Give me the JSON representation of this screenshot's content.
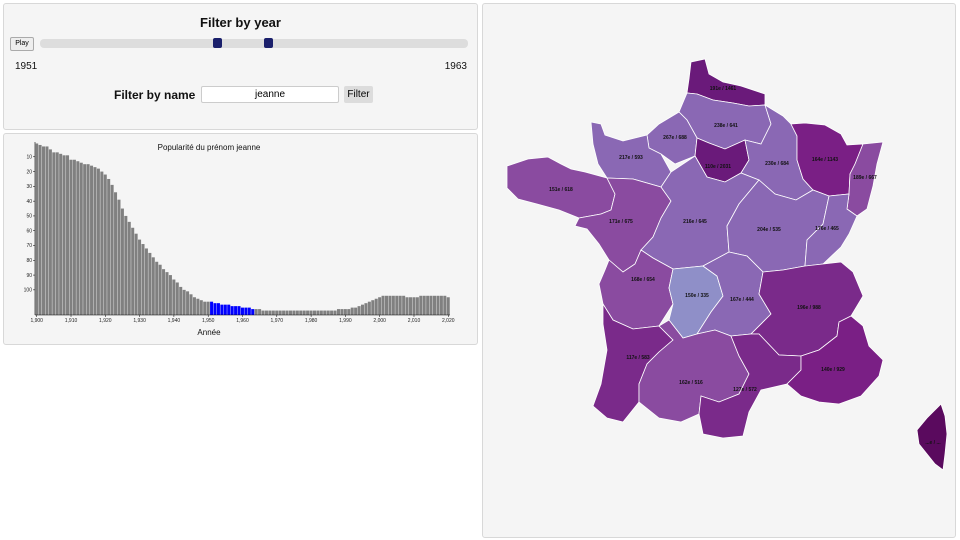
{
  "filter": {
    "title": "Filter by year",
    "play_label": "Play",
    "year_start": "1951",
    "year_end": "1963",
    "name_label": "Filter by name",
    "name_value": "jeanne",
    "filter_label": "Filter"
  },
  "colors": {
    "bar": "#808080",
    "bar_selected": "#0000ff",
    "handle": "#1a1f6b"
  },
  "chart_data": [
    {
      "type": "bar",
      "title": "Popularité du prénom jeanne",
      "xlabel": "Année",
      "ylabel": "",
      "y_reversed": true,
      "ylim": [
        0,
        117
      ],
      "yticks": [
        10,
        20,
        30,
        40,
        50,
        60,
        70,
        80,
        90,
        100
      ],
      "x_tick_labels": [
        "1,900",
        "1,910",
        "1,920",
        "1,930",
        "1,940",
        "1,950",
        "1,960",
        "1,970",
        "1,980",
        "1,990",
        "2,000",
        "2,010",
        "2,020"
      ],
      "selected_range": [
        1951,
        1963
      ],
      "years": [
        1900,
        1901,
        1902,
        1903,
        1904,
        1905,
        1906,
        1907,
        1908,
        1909,
        1910,
        1911,
        1912,
        1913,
        1914,
        1915,
        1916,
        1917,
        1918,
        1919,
        1920,
        1921,
        1922,
        1923,
        1924,
        1925,
        1926,
        1927,
        1928,
        1929,
        1930,
        1931,
        1932,
        1933,
        1934,
        1935,
        1936,
        1937,
        1938,
        1939,
        1940,
        1941,
        1942,
        1943,
        1944,
        1945,
        1946,
        1947,
        1948,
        1949,
        1950,
        1951,
        1952,
        1953,
        1954,
        1955,
        1956,
        1957,
        1958,
        1959,
        1960,
        1961,
        1962,
        1963,
        1964,
        1965,
        1966,
        1967,
        1968,
        1969,
        1970,
        1971,
        1972,
        1973,
        1974,
        1975,
        1976,
        1977,
        1978,
        1979,
        1980,
        1981,
        1982,
        1983,
        1984,
        1985,
        1986,
        1987,
        1988,
        1989,
        1990,
        1991,
        1992,
        1993,
        1994,
        1995,
        1996,
        1997,
        1998,
        1999,
        2000,
        2001,
        2002,
        2003,
        2004,
        2005,
        2006,
        2007,
        2008,
        2009,
        2010,
        2011,
        2012,
        2013,
        2014,
        2015,
        2016,
        2017,
        2018,
        2019,
        2020
      ],
      "values": [
        1,
        2,
        3,
        3,
        5,
        7,
        7,
        8,
        9,
        9,
        12,
        12,
        13,
        14,
        15,
        15,
        16,
        17,
        18,
        20,
        22,
        25,
        29,
        34,
        39,
        45,
        50,
        54,
        58,
        62,
        66,
        69,
        72,
        75,
        78,
        81,
        83,
        86,
        88,
        90,
        93,
        95,
        98,
        100,
        101,
        103,
        105,
        106,
        107,
        108,
        108,
        108,
        109,
        109,
        110,
        110,
        110,
        111,
        111,
        111,
        112,
        112,
        112,
        113,
        113,
        113,
        114,
        114,
        114,
        114,
        114,
        114,
        114,
        114,
        114,
        114,
        114,
        114,
        114,
        114,
        114,
        114,
        114,
        114,
        114,
        114,
        114,
        114,
        113,
        113,
        113,
        113,
        112,
        112,
        111,
        110,
        109,
        108,
        107,
        106,
        105,
        104,
        104,
        104,
        104,
        104,
        104,
        104,
        105,
        105,
        105,
        105,
        104,
        104,
        104,
        104,
        104,
        104,
        104,
        104,
        105
      ]
    },
    {
      "type": "map",
      "title": "",
      "regions": [
        {
          "id": "hauts-de-france",
          "label": "191e / 1461",
          "value": 1461,
          "color": "#6a1a7a"
        },
        {
          "id": "normandie-est",
          "label": "238e / 641",
          "value": 641,
          "color": "#8a68b4"
        },
        {
          "id": "normandie-ouest",
          "label": "267e / 688",
          "value": 688,
          "color": "#8a68b4"
        },
        {
          "id": "manche",
          "label": "217e / 593",
          "value": 593,
          "color": "#8a68b4"
        },
        {
          "id": "ile-de-france",
          "label": "110e / 2031",
          "value": 2031,
          "color": "#6a1a7a"
        },
        {
          "id": "champagne",
          "label": "230e / 684",
          "value": 684,
          "color": "#8a68b4"
        },
        {
          "id": "lorraine",
          "label": "164e / 1143",
          "value": 1143,
          "color": "#7a1f85"
        },
        {
          "id": "alsace",
          "label": "189e / 667",
          "value": 667,
          "color": "#8a4ba0"
        },
        {
          "id": "bretagne",
          "label": "151e / 618",
          "value": 618,
          "color": "#8a4ba0"
        },
        {
          "id": "pays-de-la-loire",
          "label": "171e / 675",
          "value": 675,
          "color": "#8a4ba0"
        },
        {
          "id": "centre",
          "label": "216e / 645",
          "value": 645,
          "color": "#8a68b4"
        },
        {
          "id": "bourgogne",
          "label": "204e / 535",
          "value": 535,
          "color": "#8a68b4"
        },
        {
          "id": "franche-comte",
          "label": "176e / 465",
          "value": 465,
          "color": "#8a68b4"
        },
        {
          "id": "poitou-charentes",
          "label": "168e / 654",
          "value": 654,
          "color": "#8a4ba0"
        },
        {
          "id": "limousin",
          "label": "150e / 335",
          "value": 335,
          "color": "#8f8fc8"
        },
        {
          "id": "auvergne",
          "label": "167e / 444",
          "value": 444,
          "color": "#8a68b4"
        },
        {
          "id": "rhone-alpes",
          "label": "196e / 988",
          "value": 988,
          "color": "#7a2a8a"
        },
        {
          "id": "aquitaine",
          "label": "117e / 583",
          "value": 583,
          "color": "#7a2a8a"
        },
        {
          "id": "midi-pyrenees",
          "label": "162e / 516",
          "value": 516,
          "color": "#8a4ba0"
        },
        {
          "id": "languedoc",
          "label": "127e / 572",
          "value": 572,
          "color": "#7a2a8a"
        },
        {
          "id": "paca",
          "label": "140e / 929",
          "value": 929,
          "color": "#7a1f85"
        },
        {
          "id": "corse",
          "label": "...e / ...",
          "value": 0,
          "color": "#5a0a5e"
        }
      ]
    }
  ]
}
